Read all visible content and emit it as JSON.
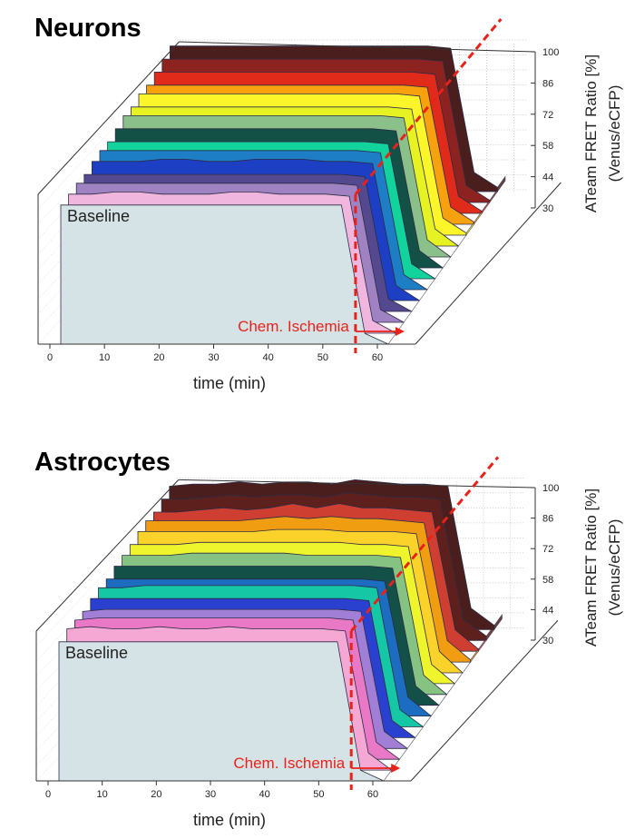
{
  "chart_data": [
    {
      "type": "area",
      "panel": "neurons",
      "title": "Neurons",
      "xlabel": "time (min)",
      "zlabel_line1": "ATeam FRET Ratio [%]",
      "zlabel_line2": "(Venus/eCFP)",
      "xlim": [
        0,
        60
      ],
      "zlim": [
        30,
        100
      ],
      "x_ticks": [
        "0",
        "10",
        "20",
        "30",
        "40",
        "50",
        "60"
      ],
      "z_ticks": [
        "100",
        "86",
        "72",
        "58",
        "44",
        "30"
      ],
      "annotations": {
        "baseline": "Baseline",
        "ischemia": "Chem. Ischemia",
        "ischemia_onset_min": 54
      },
      "grid": true,
      "series": [
        {
          "color": "#d6e3e6",
          "values": [
            95,
            95,
            95,
            95,
            95,
            95,
            95,
            95,
            95,
            95,
            95,
            95,
            95,
            35,
            30
          ]
        },
        {
          "color": "#f0b6de",
          "values": [
            95,
            95,
            96,
            96,
            95,
            95,
            95,
            96,
            96,
            95,
            95,
            95,
            94,
            36,
            30
          ]
        },
        {
          "color": "#9e82c1",
          "values": [
            95,
            95,
            95,
            95,
            95,
            95,
            95,
            95,
            95,
            95,
            95,
            95,
            94,
            36,
            30
          ]
        },
        {
          "color": "#54488f",
          "values": [
            94,
            94,
            94,
            94,
            94,
            94,
            94,
            94,
            94,
            94,
            94,
            94,
            93,
            36,
            30
          ]
        },
        {
          "color": "#1c3fc4",
          "values": [
            95,
            95,
            95,
            96,
            96,
            95,
            95,
            96,
            96,
            96,
            95,
            95,
            94,
            37,
            30
          ]
        },
        {
          "color": "#1d7ec6",
          "values": [
            95,
            95,
            95,
            95,
            95,
            95,
            95,
            95,
            95,
            95,
            95,
            95,
            94,
            37,
            30
          ]
        },
        {
          "color": "#11d39b",
          "values": [
            94,
            94,
            94,
            94,
            94,
            94,
            94,
            94,
            94,
            94,
            94,
            94,
            93,
            37,
            30
          ]
        },
        {
          "color": "#135046",
          "values": [
            95,
            95,
            95,
            95,
            95,
            95,
            95,
            95,
            95,
            95,
            95,
            95,
            94,
            38,
            30
          ]
        },
        {
          "color": "#8cc08a",
          "values": [
            96,
            96,
            96,
            96,
            96,
            96,
            96,
            96,
            96,
            96,
            96,
            96,
            95,
            38,
            30
          ]
        },
        {
          "color": "#e6f222",
          "values": [
            95,
            95,
            95,
            95,
            95,
            95,
            95,
            95,
            95,
            95,
            95,
            95,
            94,
            38,
            30
          ]
        },
        {
          "color": "#fbf52a",
          "values": [
            96,
            96,
            96,
            96,
            96,
            96,
            96,
            96,
            96,
            96,
            96,
            96,
            95,
            38,
            31
          ]
        },
        {
          "color": "#f7a10f",
          "values": [
            95,
            95,
            95,
            95,
            95,
            95,
            95,
            95,
            95,
            95,
            95,
            95,
            94,
            38,
            31
          ]
        },
        {
          "color": "#e02b1a",
          "values": [
            96,
            96,
            96,
            96,
            96,
            96,
            96,
            96,
            96,
            96,
            96,
            96,
            95,
            38,
            31
          ]
        },
        {
          "color": "#8c2321",
          "values": [
            97,
            97,
            97,
            97,
            97,
            97,
            97,
            97,
            97,
            97,
            97,
            97,
            96,
            38,
            31
          ]
        },
        {
          "color": "#4a1e1d",
          "values": [
            98,
            98,
            98,
            98,
            98,
            98,
            98,
            98,
            98,
            98,
            98,
            98,
            97,
            39,
            32
          ]
        }
      ]
    },
    {
      "type": "area",
      "panel": "astrocytes",
      "title": "Astrocytes",
      "xlabel": "time (min)",
      "zlabel_line1": "ATeam FRET Ratio [%]",
      "zlabel_line2": "(Venus/eCFP)",
      "xlim": [
        0,
        60
      ],
      "zlim": [
        30,
        100
      ],
      "x_ticks": [
        "0",
        "10",
        "20",
        "30",
        "40",
        "50",
        "60"
      ],
      "z_ticks": [
        "100",
        "86",
        "72",
        "58",
        "44",
        "30"
      ],
      "annotations": {
        "baseline": "Baseline",
        "ischemia": "Chem. Ischemia",
        "ischemia_onset_min": 54
      },
      "grid": true,
      "series": [
        {
          "color": "#d6e3e6",
          "values": [
            95,
            95,
            95,
            95,
            95,
            95,
            95,
            95,
            95,
            95,
            95,
            95,
            95,
            35,
            30
          ]
        },
        {
          "color": "#f5a8d3",
          "values": [
            96,
            97,
            96,
            96,
            97,
            96,
            96,
            97,
            96,
            96,
            96,
            96,
            95,
            38,
            30
          ]
        },
        {
          "color": "#e978c6",
          "values": [
            95,
            96,
            96,
            96,
            96,
            96,
            96,
            96,
            96,
            96,
            96,
            96,
            95,
            38,
            30
          ]
        },
        {
          "color": "#a27fd6",
          "values": [
            94,
            95,
            95,
            95,
            95,
            95,
            95,
            95,
            95,
            95,
            95,
            95,
            94,
            38,
            30
          ]
        },
        {
          "color": "#2a40cf",
          "values": [
            95,
            95,
            95,
            95,
            95,
            95,
            95,
            95,
            95,
            95,
            95,
            95,
            94,
            38,
            30
          ]
        },
        {
          "color": "#16c7a6",
          "values": [
            95,
            95,
            96,
            96,
            96,
            96,
            96,
            96,
            96,
            96,
            96,
            96,
            95,
            38,
            30
          ]
        },
        {
          "color": "#1c6cc0",
          "values": [
            94,
            94,
            94,
            94,
            94,
            94,
            94,
            94,
            94,
            94,
            94,
            94,
            93,
            39,
            30
          ]
        },
        {
          "color": "#125048",
          "values": [
            95,
            95,
            95,
            95,
            95,
            95,
            95,
            95,
            95,
            95,
            95,
            95,
            94,
            39,
            30
          ]
        },
        {
          "color": "#86c382",
          "values": [
            95,
            95,
            95,
            96,
            96,
            96,
            96,
            96,
            95,
            95,
            95,
            95,
            94,
            39,
            30
          ]
        },
        {
          "color": "#eef52c",
          "values": [
            95,
            95,
            95,
            96,
            96,
            96,
            96,
            96,
            96,
            96,
            95,
            95,
            94,
            39,
            30
          ]
        },
        {
          "color": "#fbd22a",
          "values": [
            96,
            96,
            96,
            96,
            96,
            96,
            97,
            97,
            97,
            96,
            96,
            96,
            95,
            40,
            30
          ]
        },
        {
          "color": "#f19d12",
          "values": [
            96,
            96,
            96,
            96,
            96,
            97,
            98,
            97,
            98,
            97,
            97,
            96,
            95,
            40,
            31
          ]
        },
        {
          "color": "#cf3f31",
          "values": [
            95,
            95,
            96,
            97,
            96,
            97,
            99,
            97,
            99,
            97,
            97,
            96,
            95,
            40,
            31
          ]
        },
        {
          "color": "#5d201c",
          "values": [
            96,
            96,
            97,
            98,
            97,
            98,
            98,
            97,
            99,
            98,
            97,
            97,
            96,
            40,
            32
          ]
        },
        {
          "color": "#4a1e1d",
          "values": [
            97,
            98,
            98,
            99,
            98,
            99,
            99,
            98,
            100,
            99,
            98,
            98,
            97,
            40,
            32
          ]
        }
      ]
    }
  ]
}
